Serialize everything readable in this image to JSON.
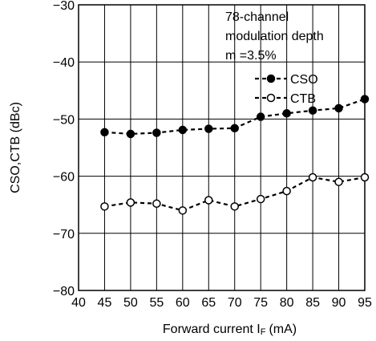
{
  "chart_data": {
    "type": "line",
    "xlabel_main": "Forward current I",
    "xlabel_sub": "F",
    "xlabel_unit": "(mA)",
    "ylabel": "CSO,CTB (dBc)",
    "xlim": [
      40,
      95
    ],
    "ylim": [
      -80,
      -30
    ],
    "x_ticks": [
      40,
      45,
      50,
      55,
      60,
      65,
      70,
      75,
      80,
      85,
      90,
      95
    ],
    "y_ticks": [
      -30,
      -40,
      -50,
      -60,
      -70,
      -80
    ],
    "x_tick_labels": [
      "40",
      "45",
      "50",
      "55",
      "60",
      "65",
      "70",
      "75",
      "80",
      "85",
      "90",
      "95"
    ],
    "y_tick_labels": [
      "−30",
      "−40",
      "−50",
      "−60",
      "−70",
      "−80"
    ],
    "grid": true,
    "annotation": [
      "78-channel",
      "modulation depth",
      "m =3.5%"
    ],
    "legend_position": "top-right",
    "series": [
      {
        "name": "CSO",
        "marker": "filled-circle",
        "x": [
          45,
          50,
          55,
          60,
          65,
          70,
          75,
          80,
          85,
          90,
          95
        ],
        "values": [
          -52.3,
          -52.6,
          -52.4,
          -51.9,
          -51.7,
          -51.6,
          -49.6,
          -49.0,
          -48.5,
          -48.1,
          -46.5
        ]
      },
      {
        "name": "CTB",
        "marker": "open-circle",
        "x": [
          45,
          50,
          55,
          60,
          65,
          70,
          75,
          80,
          85,
          90,
          95
        ],
        "values": [
          -65.3,
          -64.6,
          -64.8,
          -66.0,
          -64.2,
          -65.3,
          -64.0,
          -62.6,
          -60.2,
          -61.0,
          -60.2
        ]
      }
    ]
  }
}
